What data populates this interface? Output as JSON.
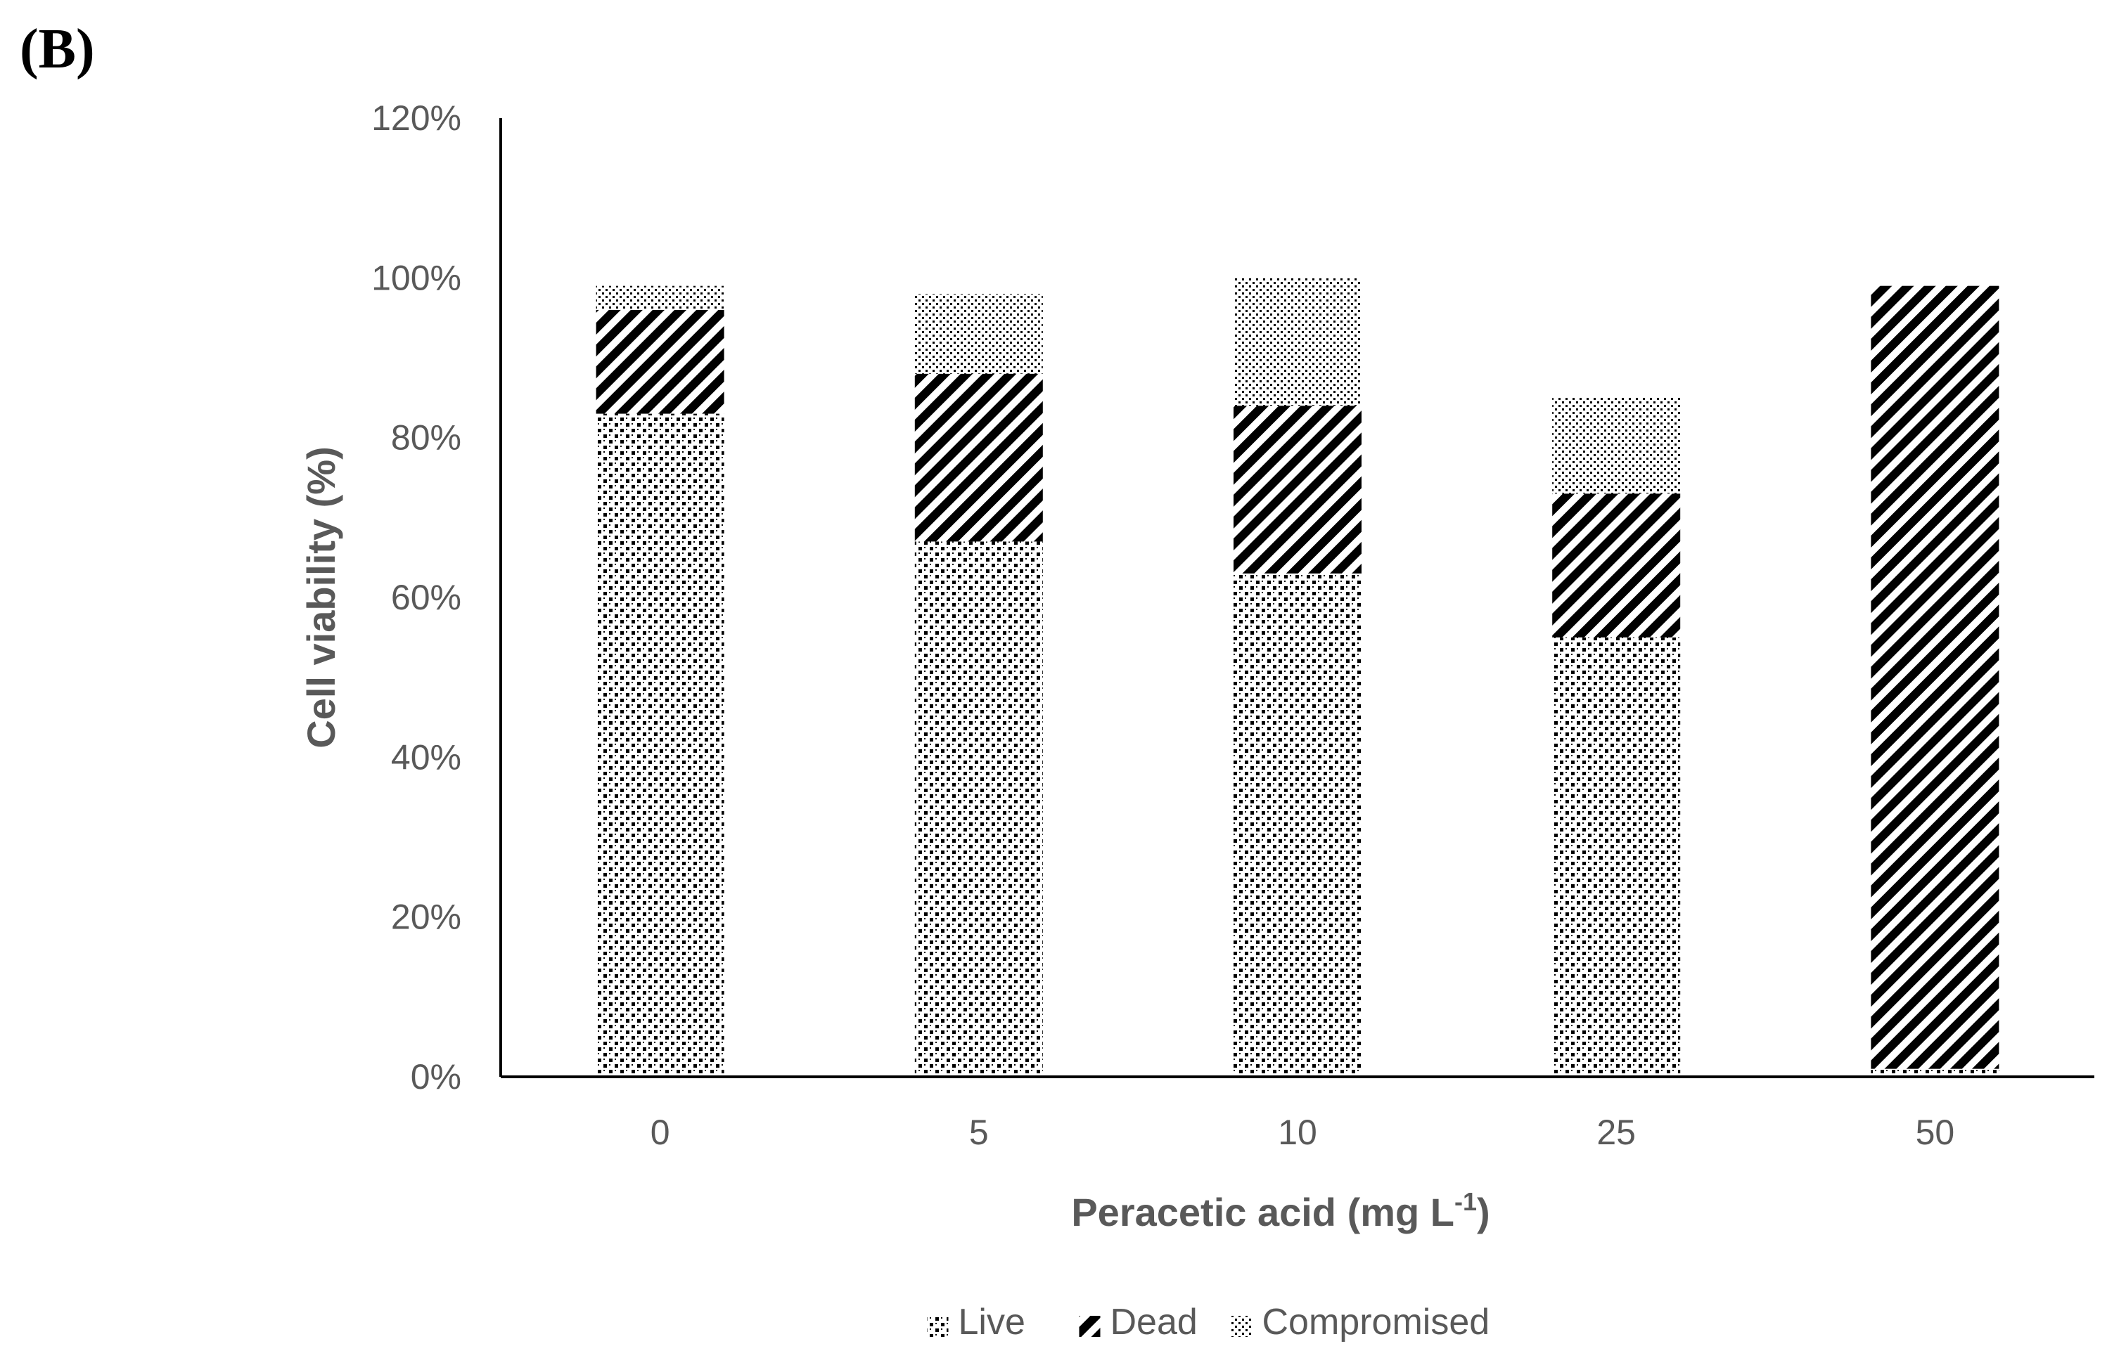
{
  "panel_label": "(B)",
  "colors": {
    "axis": "#000000",
    "text": "#595959",
    "pattern": "#000000",
    "background": "#ffffff"
  },
  "chart_data": {
    "type": "bar",
    "stacked": true,
    "title": "",
    "xlabel": "Peracetic acid (mg L",
    "xlabel_sup": "-1",
    "xlabel_close": ")",
    "ylabel": "Cell viability (%)",
    "ylim": [
      0,
      120
    ],
    "yticks": [
      0,
      20,
      40,
      60,
      80,
      100,
      120
    ],
    "ytick_labels": [
      "0%",
      "20%",
      "40%",
      "60%",
      "80%",
      "100%",
      "120%"
    ],
    "categories": [
      "0",
      "5",
      "10",
      "25",
      "50"
    ],
    "series": [
      {
        "name": "Live",
        "pattern": "dots",
        "values": [
          83,
          67,
          63,
          55,
          1
        ]
      },
      {
        "name": "Dead",
        "pattern": "diagonal",
        "values": [
          13,
          21,
          21,
          18,
          98
        ]
      },
      {
        "name": "Compromised",
        "pattern": "vertical-dots",
        "values": [
          3,
          10,
          16,
          12,
          0
        ]
      }
    ],
    "legend_position": "bottom-center"
  }
}
